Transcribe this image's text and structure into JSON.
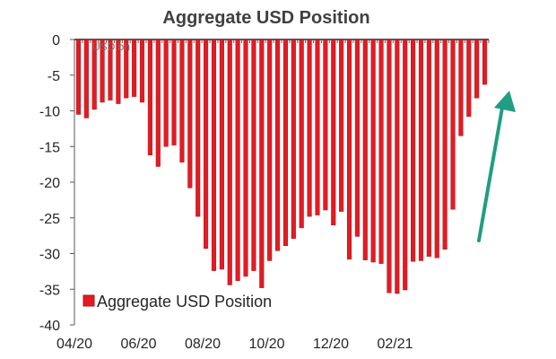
{
  "colors": {
    "bar": "#e31b23",
    "bar_stroke": "#b3121a",
    "axis": "#595959",
    "arrow": "#1f9e82",
    "text": "#262626"
  },
  "chart_data": {
    "type": "bar",
    "title": "Aggregate USD Position",
    "xlabel": "",
    "ylabel": "",
    "ylim": [
      -40,
      0
    ],
    "yticks": [
      0,
      -5,
      -10,
      -15,
      -20,
      -25,
      -30,
      -35,
      -40
    ],
    "x_tick_labels": [
      "04/20",
      "06/20",
      "08/20",
      "10/20",
      "12/20",
      "02/21"
    ],
    "legend": {
      "label": "Aggregate USD Position",
      "placement": "bottom-left"
    },
    "overlay_text": "USD bn",
    "grid": false,
    "annotation": "upward arrow",
    "series": [
      {
        "values": [
          -10.5,
          -11,
          -9.8,
          -8.8,
          -8.5,
          -9,
          -8.2,
          -8,
          -8.8,
          -16.2,
          -17.8,
          -15,
          -14.8,
          -17.2,
          -20.8,
          -24.8,
          -29.3,
          -32.4,
          -32.2,
          -34.4,
          -33.8,
          -33.2,
          -32.4,
          -34.8,
          -31,
          -29.6,
          -28.9,
          -27.9,
          -26.4,
          -24.8,
          -24.6,
          -23.9,
          -26,
          -24.1,
          -30.8,
          -27.6,
          -30.9,
          -31.2,
          -31.4,
          -35.5,
          -35.6,
          -35.1,
          -31.1,
          -31,
          -30.4,
          -30.6,
          -29.4,
          -23.8,
          -13.5,
          -10.8,
          -8.2,
          -6.3
        ]
      }
    ]
  }
}
